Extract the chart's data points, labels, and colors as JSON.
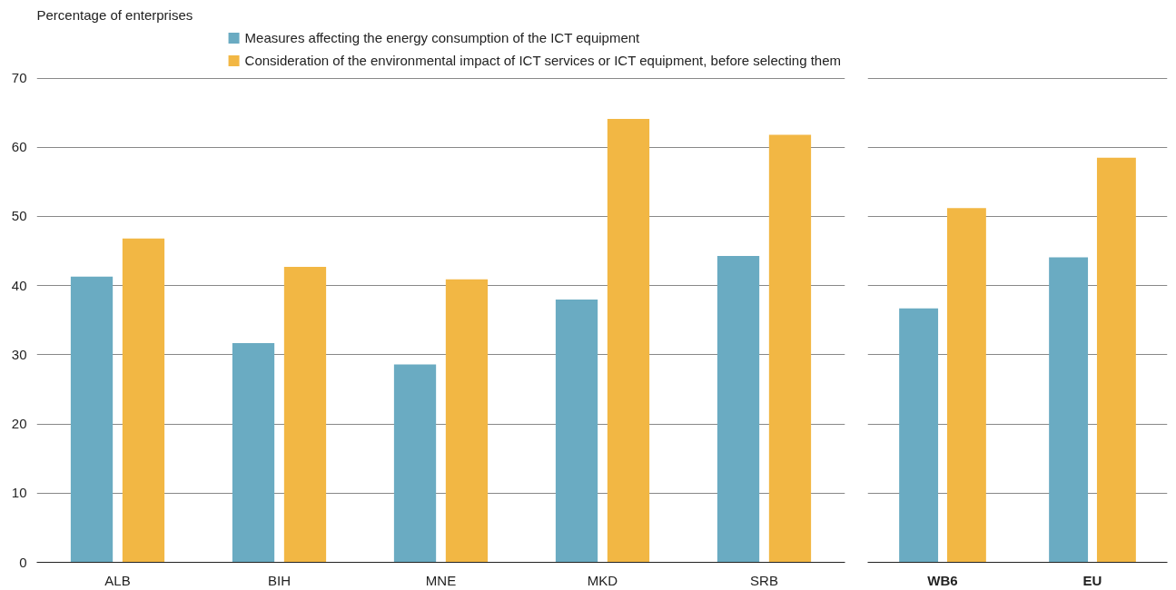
{
  "chart_data": [
    {
      "type": "bar",
      "ylabel": "Percentage of enterprises",
      "categories": [
        "ALB",
        "BIH",
        "MNE",
        "MKD",
        "SRB"
      ],
      "series": [
        {
          "name": "Measures affecting the energy consumption of the ICT equipment",
          "color": "#6aabc2",
          "values": [
            41.3,
            31.7,
            28.6,
            38.0,
            44.3
          ]
        },
        {
          "name": "Consideration of the environmental impact of ICT services or ICT equipment, before selecting them",
          "color": "#f2b744",
          "values": [
            46.8,
            42.7,
            40.9,
            64.1,
            61.8
          ]
        }
      ],
      "ylim": [
        0,
        70
      ],
      "yticks": [
        0,
        10,
        20,
        30,
        40,
        50,
        60,
        70
      ],
      "grid": "y",
      "legend": "top"
    },
    {
      "type": "bar",
      "categories": [
        "WB6",
        "EU"
      ],
      "series": [
        {
          "color": "#6aabc2",
          "values": [
            36.7,
            44.1
          ]
        },
        {
          "color": "#f2b744",
          "values": [
            51.2,
            58.5
          ]
        }
      ],
      "ylim": [
        0,
        70
      ],
      "yticks": [
        0,
        10,
        20,
        30,
        40,
        50,
        60,
        70
      ],
      "grid": "y",
      "tick_labels": "x"
    }
  ]
}
